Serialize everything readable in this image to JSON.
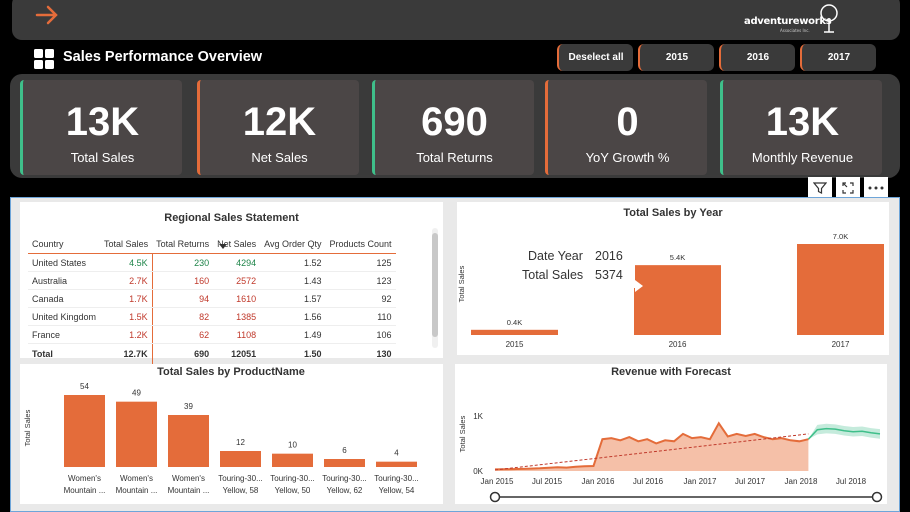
{
  "header": {
    "logo_text": "adventureworks",
    "logo_sub": "Associates Inc.",
    "title": "Sales Performance Overview"
  },
  "slicer": {
    "deselect_label": "Deselect all",
    "years": [
      "2015",
      "2016",
      "2017"
    ]
  },
  "kpis": [
    {
      "value": "13K",
      "label": "Total Sales"
    },
    {
      "value": "12K",
      "label": "Net Sales"
    },
    {
      "value": "690",
      "label": "Total Returns"
    },
    {
      "value": "0",
      "label": "YoY Growth %"
    },
    {
      "value": "13K",
      "label": "Monthly Revenue"
    }
  ],
  "regional": {
    "title": "Regional Sales Statement",
    "columns": [
      "Country",
      "Total Sales",
      "Total Returns",
      "Net Sales",
      "Avg Order Qty",
      "Products Count"
    ],
    "rows": [
      {
        "country": "United States",
        "sales": "4.5K",
        "returns": "230",
        "net": "4294",
        "avg": "1.52",
        "count": "125",
        "tone": "green"
      },
      {
        "country": "Australia",
        "sales": "2.7K",
        "returns": "160",
        "net": "2572",
        "avg": "1.43",
        "count": "123",
        "tone": "red"
      },
      {
        "country": "Canada",
        "sales": "1.7K",
        "returns": "94",
        "net": "1610",
        "avg": "1.57",
        "count": "92",
        "tone": "red"
      },
      {
        "country": "United Kingdom",
        "sales": "1.5K",
        "returns": "82",
        "net": "1385",
        "avg": "1.56",
        "count": "110",
        "tone": "red"
      },
      {
        "country": "France",
        "sales": "1.2K",
        "returns": "62",
        "net": "1108",
        "avg": "1.49",
        "count": "106",
        "tone": "red"
      }
    ],
    "total": {
      "country": "Total",
      "sales": "12.7K",
      "returns": "690",
      "net": "12051",
      "avg": "1.50",
      "count": "130"
    }
  },
  "chart_data": [
    {
      "type": "bar",
      "title": "Total Sales by Year",
      "ylabel": "Total Sales",
      "categories": [
        "2015",
        "2016",
        "2017"
      ],
      "values": [
        400,
        5374,
        7000
      ],
      "data_labels": [
        "0.4K",
        "5.4K",
        "7.0K"
      ],
      "ylim": [
        0,
        7000
      ],
      "tooltip": {
        "k1": "Date Year",
        "v1": "2016",
        "k2": "Total Sales",
        "v2": "5374"
      }
    },
    {
      "type": "bar",
      "title": "Total Sales by ProductName",
      "ylabel": "Total Sales",
      "categories": [
        [
          "Women's",
          "Mountain ..."
        ],
        [
          "Women's",
          "Mountain ..."
        ],
        [
          "Women's",
          "Mountain ..."
        ],
        [
          "Touring-30...",
          "Yellow, 58"
        ],
        [
          "Touring-30...",
          "Yellow, 50"
        ],
        [
          "Touring-30...",
          "Yellow, 62"
        ],
        [
          "Touring-30...",
          "Yellow, 54"
        ]
      ],
      "values": [
        54,
        49,
        39,
        12,
        10,
        6,
        4
      ],
      "ylim": [
        0,
        60
      ]
    },
    {
      "type": "area",
      "title": "Revenue with Forecast",
      "ylabel": "Total Sales",
      "x_ticks": [
        "Jan 2015",
        "Jul 2015",
        "Jan 2016",
        "Jul 2016",
        "Jan 2017",
        "Jul 2017",
        "Jan 2018",
        "Jul 2018"
      ],
      "y_ticks": [
        "0K",
        "1K"
      ],
      "ylim": [
        0,
        1000
      ],
      "actual": [
        30,
        32,
        35,
        40,
        45,
        50,
        60,
        70,
        65,
        80,
        90,
        95,
        600,
        620,
        580,
        640,
        560,
        600,
        520,
        580,
        560,
        700,
        620,
        640,
        600,
        900,
        650,
        700,
        660,
        700,
        640,
        600,
        620,
        580,
        560,
        600
      ],
      "trend": [
        [
          0,
          20
        ],
        [
          35,
          700
        ]
      ],
      "forecast": [
        780,
        800,
        790,
        760,
        740,
        750,
        720,
        700
      ],
      "forecast_band": 90
    }
  ],
  "colors": {
    "accent": "#e46c3a",
    "green": "#3fbf8a",
    "panel": "#3a3a3a"
  }
}
